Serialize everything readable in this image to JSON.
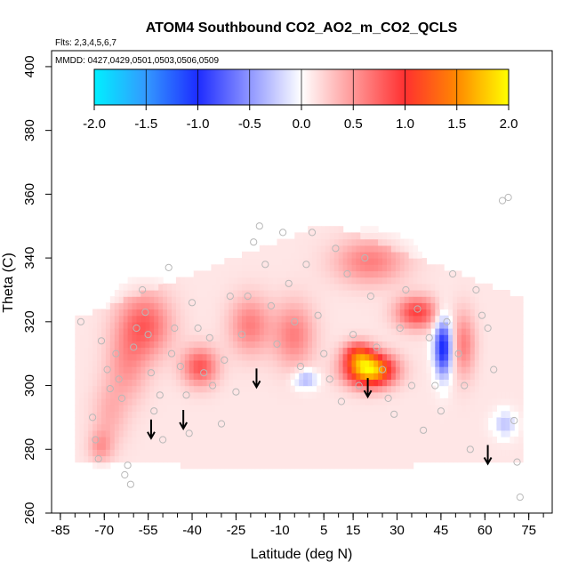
{
  "chart_data": {
    "type": "heatmap",
    "title": "ATOM4 Southbound CO2_AO2_m_CO2_QCLS",
    "flights_text": "Flts: 2,3,4,5,6,7",
    "dates_text": "MMDD: 0427,0429,0501,0503,0506,0509",
    "xlabel": "Latitude (deg N)",
    "ylabel": "Theta (C)",
    "xlim": [
      -88,
      83
    ],
    "ylim": [
      260,
      405
    ],
    "x_tick_labels": [
      "-85",
      "-70",
      "-55",
      "-40",
      "-25",
      "-10",
      "5",
      "15",
      "30",
      "45",
      "60",
      "75"
    ],
    "x_tick_values": [
      -85,
      -70,
      -55,
      -40,
      -25,
      -10,
      5,
      15,
      30,
      45,
      60,
      75
    ],
    "y_tick_labels": [
      "260",
      "280",
      "300",
      "320",
      "340",
      "360",
      "380",
      "400"
    ],
    "y_tick_values": [
      260,
      280,
      300,
      320,
      340,
      360,
      380,
      400
    ],
    "colorbar": {
      "range": [
        -2.0,
        2.0
      ],
      "tick_labels": [
        "-2.0",
        "-1.5",
        "-1.0",
        "-0.5",
        "0.0",
        "0.5",
        "1.0",
        "1.5",
        "2.0"
      ],
      "tick_values": [
        -2.0,
        -1.5,
        -1.0,
        -0.5,
        0.0,
        0.5,
        1.0,
        1.5,
        2.0
      ],
      "colors": [
        "#00f0ff",
        "#3399ff",
        "#1d2cff",
        "#ffffff",
        "#ff3030",
        "#ff8800",
        "#ffff00"
      ]
    },
    "field_blobs": [
      {
        "lat": -57,
        "theta": 318,
        "rlat": 9,
        "rtheta": 10,
        "value": 0.65
      },
      {
        "lat": -63,
        "theta": 305,
        "rlat": 7,
        "rtheta": 11,
        "value": 0.35
      },
      {
        "lat": -69,
        "theta": 290,
        "rlat": 6,
        "rtheta": 10,
        "value": 0.25
      },
      {
        "lat": -72,
        "theta": 280,
        "rlat": 4,
        "rtheta": 5,
        "value": 0.35
      },
      {
        "lat": -38,
        "theta": 305,
        "rlat": 6,
        "rtheta": 6,
        "value": 0.7
      },
      {
        "lat": -21,
        "theta": 318,
        "rlat": 7,
        "rtheta": 9,
        "value": 0.5
      },
      {
        "lat": -6,
        "theta": 315,
        "rlat": 7,
        "rtheta": 10,
        "value": 0.5
      },
      {
        "lat": 20,
        "theta": 304,
        "rlat": 8,
        "rtheta": 5,
        "value": 1.8
      },
      {
        "lat": 16,
        "theta": 309,
        "rlat": 5,
        "rtheta": 4,
        "value": 0.8
      },
      {
        "lat": 20,
        "theta": 338,
        "rlat": 12,
        "rtheta": 7,
        "value": 0.5
      },
      {
        "lat": 36,
        "theta": 322,
        "rlat": 7,
        "rtheta": 5,
        "value": 0.8
      },
      {
        "lat": 45,
        "theta": 311,
        "rlat": 3,
        "rtheta": 9,
        "value": -1.2
      },
      {
        "lat": -2,
        "theta": 301,
        "rlat": 4,
        "rtheta": 3,
        "value": -0.5
      },
      {
        "lat": 66,
        "theta": 287,
        "rlat": 4,
        "rtheta": 4,
        "value": -0.4
      },
      {
        "lat": 52,
        "theta": 312,
        "rlat": 4,
        "rtheta": 10,
        "value": 0.5
      }
    ],
    "arrows": [
      {
        "lat": -54,
        "theta": 286
      },
      {
        "lat": -43,
        "theta": 289
      },
      {
        "lat": -18,
        "theta": 302
      },
      {
        "lat": 20,
        "theta": 299
      },
      {
        "lat": 61,
        "theta": 278
      }
    ],
    "observation_points": [
      {
        "lat": -78,
        "theta": 320
      },
      {
        "lat": -74,
        "theta": 290
      },
      {
        "lat": -73,
        "theta": 283
      },
      {
        "lat": -71,
        "theta": 314
      },
      {
        "lat": -72,
        "theta": 277
      },
      {
        "lat": -69,
        "theta": 305
      },
      {
        "lat": -68,
        "theta": 299
      },
      {
        "lat": -66,
        "theta": 310
      },
      {
        "lat": -65,
        "theta": 302
      },
      {
        "lat": -64,
        "theta": 296
      },
      {
        "lat": -63,
        "theta": 272
      },
      {
        "lat": -62,
        "theta": 275
      },
      {
        "lat": -61,
        "theta": 269
      },
      {
        "lat": -60,
        "theta": 312
      },
      {
        "lat": -59,
        "theta": 318
      },
      {
        "lat": -57,
        "theta": 330
      },
      {
        "lat": -56,
        "theta": 323
      },
      {
        "lat": -55,
        "theta": 316
      },
      {
        "lat": -54,
        "theta": 304
      },
      {
        "lat": -53,
        "theta": 292
      },
      {
        "lat": -51,
        "theta": 297
      },
      {
        "lat": -50,
        "theta": 283
      },
      {
        "lat": -48,
        "theta": 337
      },
      {
        "lat": -47,
        "theta": 310
      },
      {
        "lat": -46,
        "theta": 318
      },
      {
        "lat": -44,
        "theta": 306
      },
      {
        "lat": -42,
        "theta": 297
      },
      {
        "lat": -41,
        "theta": 285
      },
      {
        "lat": -40,
        "theta": 326
      },
      {
        "lat": -38,
        "theta": 318
      },
      {
        "lat": -36,
        "theta": 304
      },
      {
        "lat": -34,
        "theta": 315
      },
      {
        "lat": -33,
        "theta": 300
      },
      {
        "lat": -30,
        "theta": 288
      },
      {
        "lat": -29,
        "theta": 308
      },
      {
        "lat": -27,
        "theta": 328
      },
      {
        "lat": -25,
        "theta": 298
      },
      {
        "lat": -23,
        "theta": 316
      },
      {
        "lat": -21,
        "theta": 328
      },
      {
        "lat": -19,
        "theta": 345
      },
      {
        "lat": -17,
        "theta": 350
      },
      {
        "lat": -15,
        "theta": 338
      },
      {
        "lat": -13,
        "theta": 325
      },
      {
        "lat": -11,
        "theta": 313
      },
      {
        "lat": -9,
        "theta": 348
      },
      {
        "lat": -7,
        "theta": 332
      },
      {
        "lat": -5,
        "theta": 320
      },
      {
        "lat": -3,
        "theta": 306
      },
      {
        "lat": -1,
        "theta": 338
      },
      {
        "lat": 1,
        "theta": 348
      },
      {
        "lat": 3,
        "theta": 322
      },
      {
        "lat": 5,
        "theta": 310
      },
      {
        "lat": 7,
        "theta": 302
      },
      {
        "lat": 9,
        "theta": 343
      },
      {
        "lat": 11,
        "theta": 295
      },
      {
        "lat": 13,
        "theta": 335
      },
      {
        "lat": 15,
        "theta": 316
      },
      {
        "lat": 17,
        "theta": 300
      },
      {
        "lat": 19,
        "theta": 340
      },
      {
        "lat": 21,
        "theta": 328
      },
      {
        "lat": 23,
        "theta": 312
      },
      {
        "lat": 25,
        "theta": 305
      },
      {
        "lat": 27,
        "theta": 296
      },
      {
        "lat": 29,
        "theta": 291
      },
      {
        "lat": 31,
        "theta": 318
      },
      {
        "lat": 33,
        "theta": 330
      },
      {
        "lat": 35,
        "theta": 300
      },
      {
        "lat": 37,
        "theta": 324
      },
      {
        "lat": 39,
        "theta": 286
      },
      {
        "lat": 41,
        "theta": 315
      },
      {
        "lat": 43,
        "theta": 300
      },
      {
        "lat": 45,
        "theta": 292
      },
      {
        "lat": 47,
        "theta": 320
      },
      {
        "lat": 49,
        "theta": 335
      },
      {
        "lat": 51,
        "theta": 310
      },
      {
        "lat": 53,
        "theta": 300
      },
      {
        "lat": 55,
        "theta": 280
      },
      {
        "lat": 57,
        "theta": 330
      },
      {
        "lat": 59,
        "theta": 322
      },
      {
        "lat": 61,
        "theta": 318
      },
      {
        "lat": 63,
        "theta": 305
      },
      {
        "lat": 66,
        "theta": 358
      },
      {
        "lat": 68,
        "theta": 359
      },
      {
        "lat": 70,
        "theta": 289
      },
      {
        "lat": 71,
        "theta": 276
      },
      {
        "lat": 72,
        "theta": 265
      }
    ]
  }
}
